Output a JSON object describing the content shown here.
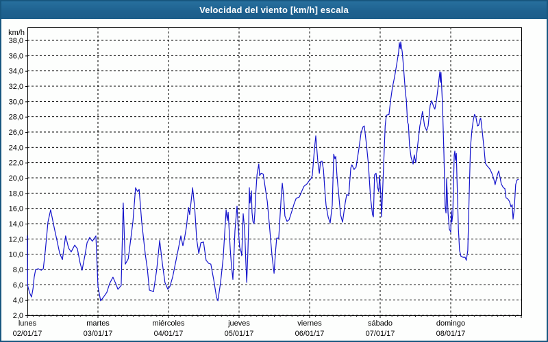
{
  "window": {
    "title": "Velocidad del viento [km/h] escala",
    "border_color": "#17567f",
    "titlebar_color": "#1e618f",
    "titlebar_text_color": "#ffffff",
    "background_color": "#fdfefd"
  },
  "chart_data": {
    "type": "line",
    "title": "Velocidad del viento [km/h] escala",
    "y_unit_label": "km/h",
    "ylabel": "km/h",
    "xlabel": "",
    "ylim": [
      2,
      38
    ],
    "ytick_step": 2,
    "ytick_labels": [
      "38,0",
      "36,0",
      "34,0",
      "32,0",
      "30,0",
      "28,0",
      "26,0",
      "24,0",
      "22,0",
      "20,0",
      "18,0",
      "16,0",
      "14,0",
      "12,0",
      "10,0",
      "8,0",
      "6,0",
      "4,0",
      "2,0"
    ],
    "grid": "dashed",
    "legend_position": "none",
    "x_hours_range": [
      0,
      168
    ],
    "x_days": [
      {
        "name": "lunes",
        "date": "02/01/17"
      },
      {
        "name": "martes",
        "date": "03/01/17"
      },
      {
        "name": "miércoles",
        "date": "04/01/17"
      },
      {
        "name": "jueves",
        "date": "05/01/17"
      },
      {
        "name": "viernes",
        "date": "06/01/17"
      },
      {
        "name": "sábado",
        "date": "07/01/17"
      },
      {
        "name": "domingo",
        "date": "08/01/17"
      }
    ],
    "series": [
      {
        "name": "Velocidad del viento",
        "color": "#1414cc",
        "points": [
          [
            0.0,
            12.4
          ],
          [
            0.1,
            5.9
          ],
          [
            0.7,
            5.0
          ],
          [
            1.4,
            4.4
          ],
          [
            1.9,
            5.5
          ],
          [
            2.3,
            7.0
          ],
          [
            2.8,
            8.0
          ],
          [
            3.7,
            8.1
          ],
          [
            4.7,
            7.9
          ],
          [
            5.4,
            8.1
          ],
          [
            6.1,
            10.5
          ],
          [
            7.0,
            14.2
          ],
          [
            7.9,
            15.8
          ],
          [
            9.1,
            13.5
          ],
          [
            10.0,
            11.9
          ],
          [
            11.0,
            10.1
          ],
          [
            11.9,
            9.3
          ],
          [
            13.0,
            12.4
          ],
          [
            14.0,
            10.8
          ],
          [
            14.9,
            10.3
          ],
          [
            16.1,
            11.2
          ],
          [
            17.0,
            10.7
          ],
          [
            17.9,
            8.9
          ],
          [
            18.6,
            7.9
          ],
          [
            19.6,
            9.9
          ],
          [
            20.3,
            11.5
          ],
          [
            21.2,
            12.2
          ],
          [
            22.1,
            11.7
          ],
          [
            23.3,
            12.4
          ],
          [
            24.0,
            5.8
          ],
          [
            24.9,
            3.9
          ],
          [
            25.9,
            4.4
          ],
          [
            27.0,
            5.0
          ],
          [
            28.0,
            6.2
          ],
          [
            29.1,
            7.0
          ],
          [
            30.1,
            6.1
          ],
          [
            30.8,
            5.4
          ],
          [
            31.9,
            5.9
          ],
          [
            32.6,
            16.7
          ],
          [
            33.3,
            8.7
          ],
          [
            34.3,
            9.4
          ],
          [
            35.0,
            11.5
          ],
          [
            35.9,
            14.3
          ],
          [
            36.8,
            18.7
          ],
          [
            37.5,
            18.2
          ],
          [
            38.0,
            18.5
          ],
          [
            38.9,
            14.2
          ],
          [
            40.1,
            10.0
          ],
          [
            40.8,
            8.1
          ],
          [
            41.5,
            5.3
          ],
          [
            42.9,
            5.1
          ],
          [
            44.0,
            8.0
          ],
          [
            45.0,
            11.8
          ],
          [
            45.9,
            8.8
          ],
          [
            46.8,
            6.3
          ],
          [
            47.8,
            5.4
          ],
          [
            48.5,
            5.8
          ],
          [
            49.4,
            7.0
          ],
          [
            50.6,
            9.3
          ],
          [
            51.5,
            11.0
          ],
          [
            52.2,
            12.4
          ],
          [
            52.9,
            11.1
          ],
          [
            53.4,
            12.0
          ],
          [
            54.1,
            13.6
          ],
          [
            54.8,
            16.1
          ],
          [
            55.2,
            15.2
          ],
          [
            56.2,
            18.7
          ],
          [
            56.9,
            16.1
          ],
          [
            57.6,
            11.9
          ],
          [
            58.3,
            10.1
          ],
          [
            59.0,
            11.5
          ],
          [
            59.9,
            11.6
          ],
          [
            60.8,
            9.2
          ],
          [
            61.7,
            8.8
          ],
          [
            62.4,
            8.7
          ],
          [
            63.4,
            6.6
          ],
          [
            64.3,
            4.4
          ],
          [
            64.8,
            3.9
          ],
          [
            65.7,
            6.3
          ],
          [
            66.6,
            9.5
          ],
          [
            67.6,
            15.8
          ],
          [
            68.0,
            14.4
          ],
          [
            68.3,
            15.5
          ],
          [
            69.0,
            10.7
          ],
          [
            69.4,
            8.6
          ],
          [
            69.9,
            6.7
          ],
          [
            70.6,
            13.1
          ],
          [
            71.3,
            16.3
          ],
          [
            71.8,
            13.1
          ],
          [
            72.2,
            10.9
          ],
          [
            72.7,
            10.3
          ],
          [
            72.9,
            9.8
          ],
          [
            73.4,
            15.3
          ],
          [
            73.9,
            13.2
          ],
          [
            74.3,
            8.9
          ],
          [
            74.6,
            6.3
          ],
          [
            75.0,
            10.3
          ],
          [
            75.3,
            14.5
          ],
          [
            75.5,
            18.7
          ],
          [
            75.7,
            16.7
          ],
          [
            76.2,
            18.3
          ],
          [
            76.4,
            15.5
          ],
          [
            76.7,
            14.3
          ],
          [
            77.1,
            14.0
          ],
          [
            77.4,
            15.6
          ],
          [
            77.6,
            17.4
          ],
          [
            78.1,
            20.4
          ],
          [
            78.7,
            21.8
          ],
          [
            79.0,
            20.3
          ],
          [
            79.5,
            20.6
          ],
          [
            80.2,
            20.5
          ],
          [
            80.9,
            18.7
          ],
          [
            81.6,
            16.9
          ],
          [
            82.3,
            13.9
          ],
          [
            83.2,
            9.8
          ],
          [
            83.9,
            7.5
          ],
          [
            84.4,
            10.3
          ],
          [
            84.8,
            12.1
          ],
          [
            85.5,
            12.1
          ],
          [
            86.4,
            17.9
          ],
          [
            86.7,
            19.3
          ],
          [
            87.2,
            17.4
          ],
          [
            87.6,
            15.0
          ],
          [
            88.3,
            14.3
          ],
          [
            89.0,
            14.5
          ],
          [
            90.0,
            15.7
          ],
          [
            90.7,
            16.6
          ],
          [
            91.4,
            17.3
          ],
          [
            92.5,
            17.5
          ],
          [
            93.4,
            18.3
          ],
          [
            94.1,
            18.9
          ],
          [
            95.1,
            19.2
          ],
          [
            95.8,
            19.6
          ],
          [
            96.5,
            19.9
          ],
          [
            96.9,
            20.3
          ],
          [
            97.6,
            23.6
          ],
          [
            98.1,
            25.5
          ],
          [
            98.8,
            22.1
          ],
          [
            99.3,
            20.6
          ],
          [
            99.7,
            22.1
          ],
          [
            100.2,
            22.2
          ],
          [
            100.7,
            21.1
          ],
          [
            101.1,
            18.8
          ],
          [
            101.6,
            16.4
          ],
          [
            102.3,
            14.9
          ],
          [
            103.0,
            14.1
          ],
          [
            103.7,
            16.4
          ],
          [
            104.2,
            23.1
          ],
          [
            104.6,
            22.5
          ],
          [
            104.9,
            22.8
          ],
          [
            105.3,
            20.3
          ],
          [
            105.8,
            18.2
          ],
          [
            106.5,
            15.2
          ],
          [
            107.2,
            14.2
          ],
          [
            108.1,
            16.7
          ],
          [
            108.6,
            17.8
          ],
          [
            109.3,
            17.7
          ],
          [
            110.0,
            21.3
          ],
          [
            110.4,
            21.7
          ],
          [
            111.1,
            21.1
          ],
          [
            111.8,
            21.4
          ],
          [
            112.8,
            23.9
          ],
          [
            113.5,
            25.9
          ],
          [
            114.2,
            26.7
          ],
          [
            114.6,
            26.8
          ],
          [
            115.3,
            24.5
          ],
          [
            116.0,
            21.8
          ],
          [
            116.7,
            17.5
          ],
          [
            117.4,
            15.2
          ],
          [
            117.7,
            14.9
          ],
          [
            118.1,
            20.4
          ],
          [
            118.6,
            20.6
          ],
          [
            119.1,
            18.8
          ],
          [
            119.5,
            18.2
          ],
          [
            119.8,
            20.3
          ],
          [
            120.2,
            17.9
          ],
          [
            120.5,
            14.9
          ],
          [
            121.2,
            22.0
          ],
          [
            121.7,
            26.8
          ],
          [
            122.1,
            28.2
          ],
          [
            123.0,
            28.3
          ],
          [
            123.5,
            30.0
          ],
          [
            124.2,
            31.9
          ],
          [
            124.9,
            33.2
          ],
          [
            125.6,
            34.8
          ],
          [
            126.3,
            36.5
          ],
          [
            126.5,
            37.7
          ],
          [
            126.8,
            36.9
          ],
          [
            127.0,
            37.8
          ],
          [
            127.5,
            36.5
          ],
          [
            127.9,
            34.7
          ],
          [
            128.6,
            31.1
          ],
          [
            128.9,
            30.2
          ],
          [
            129.3,
            27.3
          ],
          [
            129.6,
            27.0
          ],
          [
            130.0,
            24.2
          ],
          [
            130.5,
            22.7
          ],
          [
            131.2,
            21.8
          ],
          [
            131.6,
            23.0
          ],
          [
            132.1,
            22.0
          ],
          [
            132.8,
            24.4
          ],
          [
            133.5,
            26.8
          ],
          [
            134.0,
            27.8
          ],
          [
            134.4,
            28.7
          ],
          [
            135.1,
            26.8
          ],
          [
            135.8,
            26.2
          ],
          [
            136.3,
            26.8
          ],
          [
            137.0,
            29.5
          ],
          [
            137.5,
            30.1
          ],
          [
            138.2,
            29.3
          ],
          [
            138.6,
            29.0
          ],
          [
            139.1,
            30.0
          ],
          [
            139.8,
            32.2
          ],
          [
            140.3,
            33.9
          ],
          [
            140.5,
            32.5
          ],
          [
            140.7,
            33.8
          ],
          [
            141.2,
            29.5
          ],
          [
            141.7,
            23.0
          ],
          [
            142.1,
            16.3
          ],
          [
            142.4,
            15.4
          ],
          [
            142.6,
            19.9
          ],
          [
            143.1,
            15.4
          ],
          [
            143.5,
            13.3
          ],
          [
            144.0,
            12.9
          ],
          [
            144.2,
            15.7
          ],
          [
            144.4,
            14.2
          ],
          [
            144.7,
            15.2
          ],
          [
            145.2,
            23.0
          ],
          [
            145.4,
            23.5
          ],
          [
            145.6,
            22.3
          ],
          [
            145.9,
            23.2
          ],
          [
            146.1,
            20.3
          ],
          [
            146.6,
            13.3
          ],
          [
            147.0,
            10.5
          ],
          [
            147.5,
            9.7
          ],
          [
            148.2,
            9.6
          ],
          [
            148.9,
            9.6
          ],
          [
            149.3,
            9.2
          ],
          [
            149.8,
            10.5
          ],
          [
            150.3,
            18.0
          ],
          [
            150.7,
            24.0
          ],
          [
            151.2,
            26.2
          ],
          [
            151.7,
            27.6
          ],
          [
            152.1,
            28.3
          ],
          [
            152.6,
            27.9
          ],
          [
            153.1,
            26.8
          ],
          [
            153.5,
            26.9
          ],
          [
            154.0,
            27.7
          ],
          [
            154.2,
            27.8
          ],
          [
            154.7,
            26.2
          ],
          [
            155.4,
            23.6
          ],
          [
            155.8,
            21.9
          ],
          [
            156.3,
            21.6
          ],
          [
            157.0,
            21.3
          ],
          [
            157.4,
            21.1
          ],
          [
            158.1,
            20.5
          ],
          [
            158.6,
            19.9
          ],
          [
            159.1,
            19.1
          ],
          [
            159.8,
            20.3
          ],
          [
            160.3,
            20.9
          ],
          [
            160.7,
            20.2
          ],
          [
            161.2,
            19.2
          ],
          [
            161.9,
            18.7
          ],
          [
            162.4,
            18.6
          ],
          [
            162.8,
            17.4
          ],
          [
            163.5,
            17.2
          ],
          [
            164.0,
            16.9
          ],
          [
            164.5,
            16.2
          ],
          [
            164.9,
            16.5
          ],
          [
            165.2,
            14.6
          ],
          [
            165.6,
            15.9
          ],
          [
            166.1,
            19.1
          ],
          [
            166.5,
            19.7
          ],
          [
            167.0,
            19.8
          ]
        ]
      }
    ]
  }
}
